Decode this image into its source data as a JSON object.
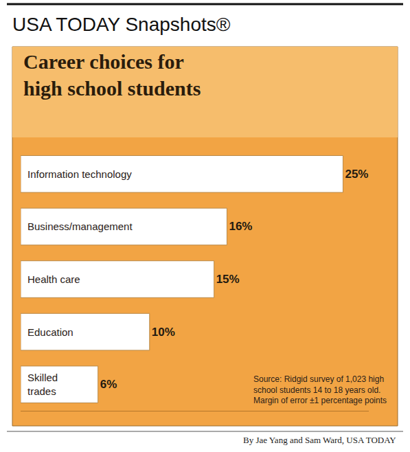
{
  "chart_data": {
    "type": "bar",
    "orientation": "horizontal",
    "header": "USA TODAY Snapshots®",
    "title": "Career choices for high school students",
    "categories": [
      "Information technology",
      "Business/management",
      "Health care",
      "Education",
      "Skilled trades"
    ],
    "values": [
      25,
      16,
      15,
      10,
      6
    ],
    "value_labels": [
      "25%",
      "16%",
      "15%",
      "10%",
      "6%"
    ],
    "data_labels": true,
    "color": "#ffffff",
    "xlim": [
      0,
      27
    ],
    "tick_labels": false,
    "grid": false,
    "annotations": [
      "Source: Ridgid survey of 1,023 high school students 14 to 18 years old. Margin of error ±1 percentage points",
      "By Jae Yang and Sam Ward, USA TODAY"
    ]
  }
}
